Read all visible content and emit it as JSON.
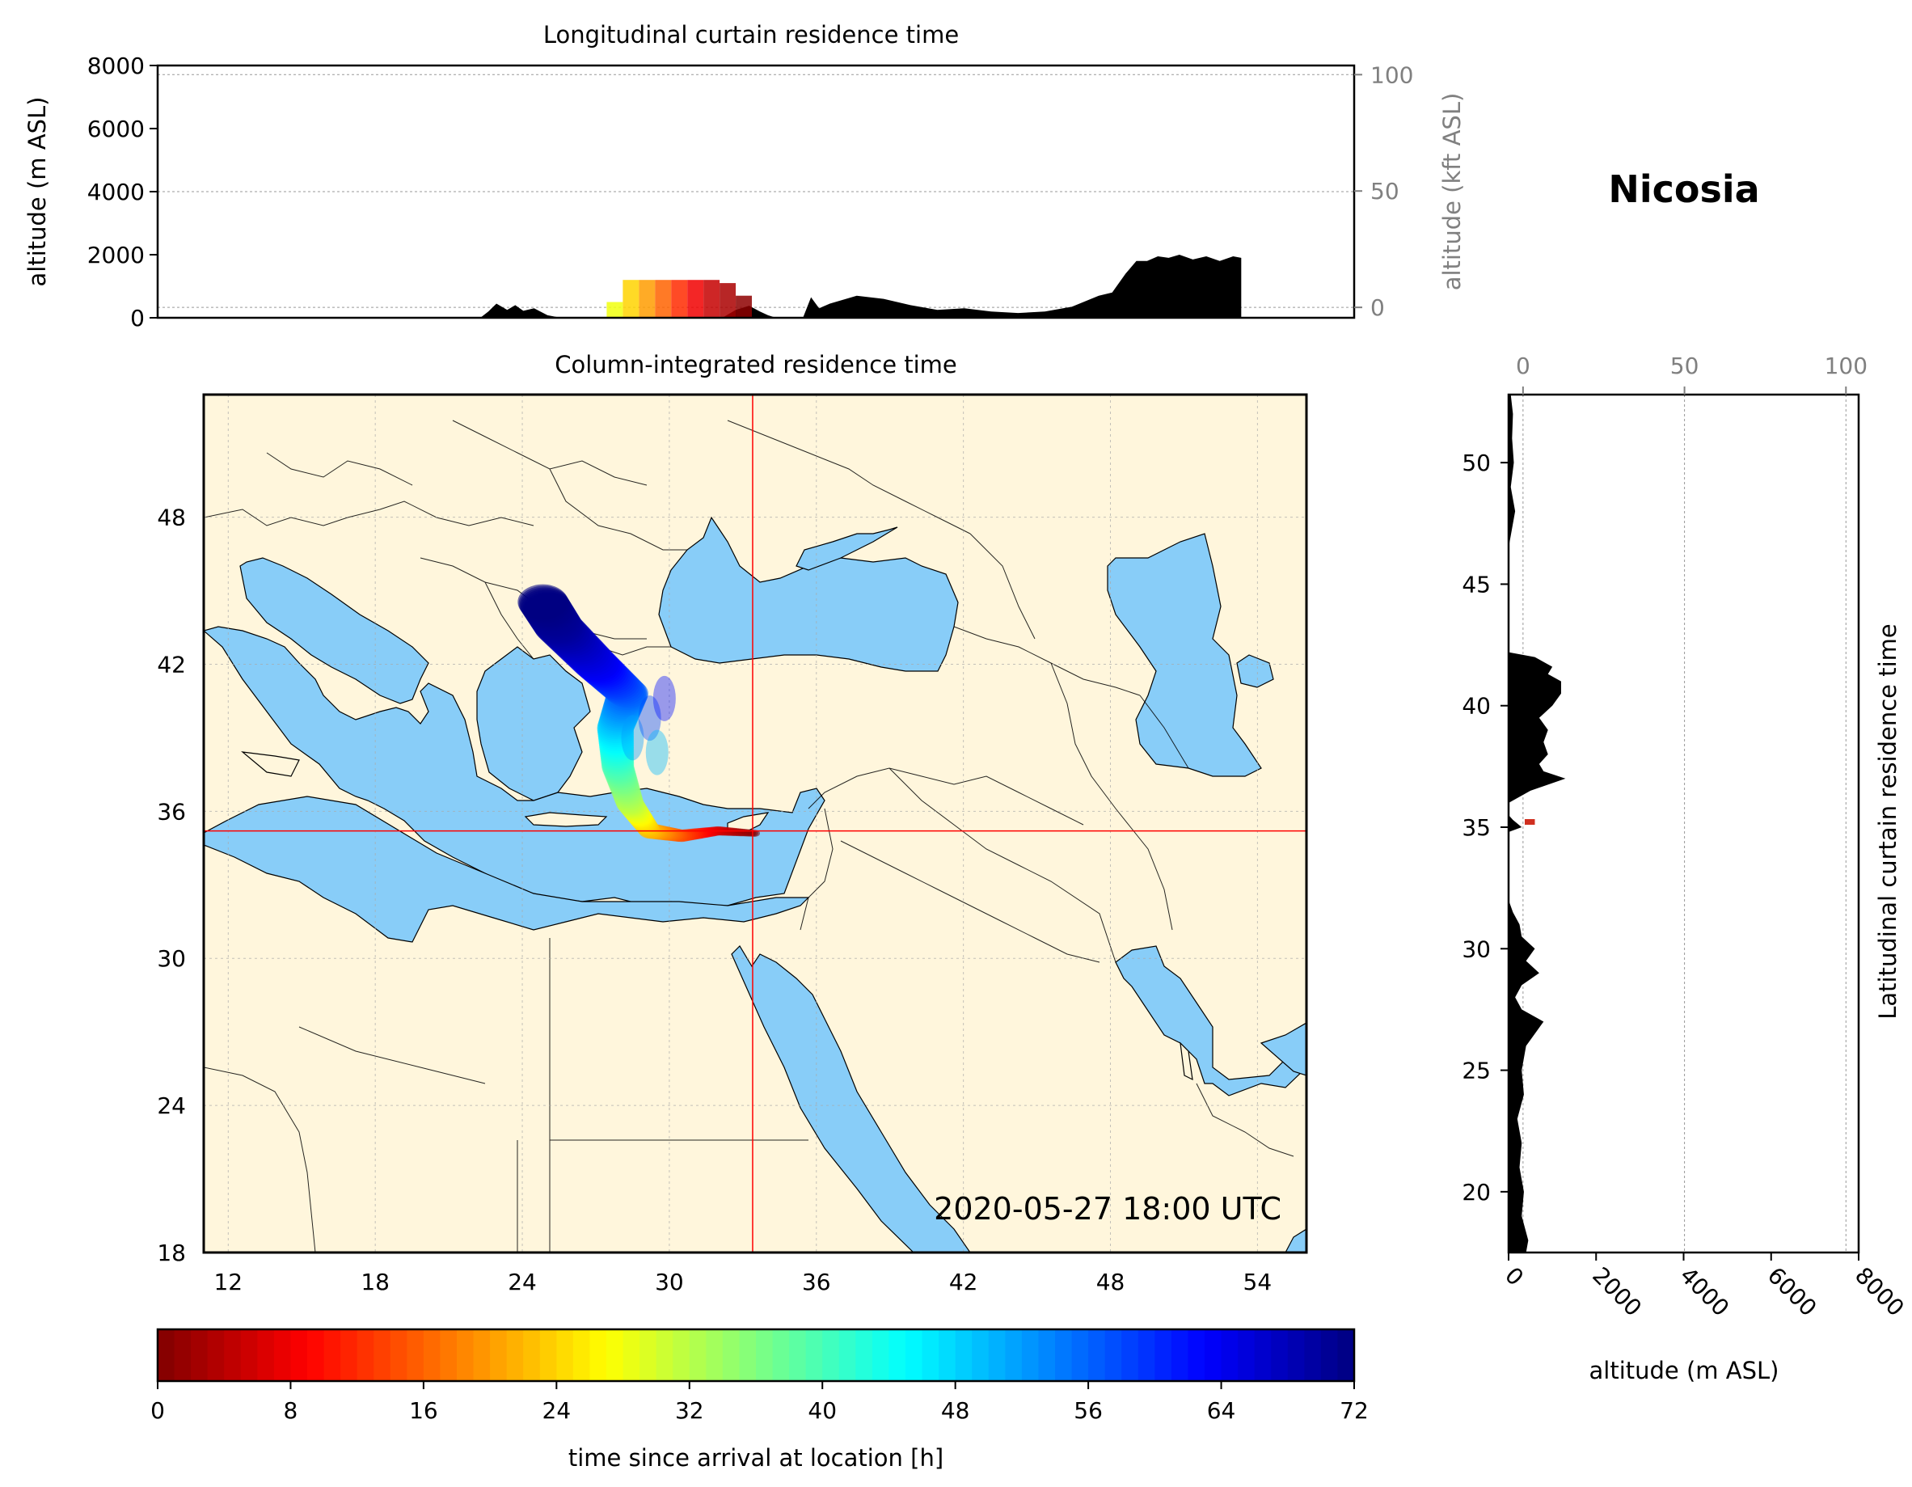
{
  "location_name": "Nicosia",
  "timestamp": "2020-05-27 18:00 UTC",
  "chart_data": [
    {
      "id": "longitudinal",
      "type": "area",
      "title": "Longitudinal curtain residence time",
      "ylabel": "altitude (m ASL)",
      "ylabel_right": "altitude (kft ASL)",
      "ylim": [
        0,
        8000
      ],
      "yticks": [
        "0",
        "2000",
        "4000",
        "6000",
        "8000"
      ],
      "yticks_right": [
        "0",
        "50",
        "100"
      ],
      "xlim": [
        11,
        55.5
      ],
      "grid": true,
      "terrain_lon": [
        23,
        23.3,
        23.6,
        24,
        24.3,
        24.6,
        25,
        25.5,
        26
      ],
      "terrain_alt": [
        0,
        200,
        450,
        250,
        400,
        220,
        300,
        80,
        0
      ],
      "terrain2_lon": [
        32,
        32.5,
        33,
        33.4,
        33.7,
        34
      ],
      "terrain2_alt": [
        0,
        250,
        380,
        200,
        80,
        0
      ],
      "terrain3_lon": [
        35,
        35.3,
        35.6,
        36,
        37,
        38,
        39,
        40,
        41,
        42,
        43,
        44,
        45,
        46,
        46.5,
        47,
        47.4,
        47.8,
        48.2,
        48.6,
        49,
        49.5,
        50,
        50.5,
        51,
        51.3,
        51.3
      ],
      "terrain3_alt": [
        0,
        650,
        300,
        450,
        700,
        600,
        400,
        250,
        300,
        200,
        150,
        200,
        350,
        700,
        800,
        1400,
        1800,
        1800,
        1950,
        1900,
        2000,
        1850,
        1950,
        1800,
        1950,
        1900,
        0
      ],
      "plume": [
        {
          "lon": 28.0,
          "alt_top": 500,
          "hours": 28
        },
        {
          "lon": 28.6,
          "alt_top": 1200,
          "hours": 24
        },
        {
          "lon": 29.2,
          "alt_top": 1200,
          "hours": 20
        },
        {
          "lon": 29.8,
          "alt_top": 1200,
          "hours": 16
        },
        {
          "lon": 30.4,
          "alt_top": 1200,
          "hours": 12
        },
        {
          "lon": 31.0,
          "alt_top": 1200,
          "hours": 8
        },
        {
          "lon": 31.6,
          "alt_top": 1200,
          "hours": 5
        },
        {
          "lon": 32.2,
          "alt_top": 1100,
          "hours": 3
        },
        {
          "lon": 32.8,
          "alt_top": 700,
          "hours": 1
        }
      ]
    },
    {
      "id": "column_map",
      "type": "heatmap",
      "title": "Column-integrated residence time",
      "xlim": [
        11,
        56
      ],
      "ylim": [
        18,
        53
      ],
      "xticks": [
        "12",
        "18",
        "24",
        "30",
        "36",
        "42",
        "48",
        "54"
      ],
      "yticks": [
        "18",
        "24",
        "30",
        "36",
        "42",
        "48"
      ],
      "release_point": {
        "lon": 33.4,
        "lat": 35.2
      },
      "grid": true,
      "plume_track": [
        {
          "lon": 33.5,
          "lat": 35.1,
          "hours": 0
        },
        {
          "lon": 32.0,
          "lat": 35.2,
          "hours": 6
        },
        {
          "lon": 30.5,
          "lat": 35.0,
          "hours": 14
        },
        {
          "lon": 29.2,
          "lat": 35.2,
          "hours": 22
        },
        {
          "lon": 28.4,
          "lat": 36.3,
          "hours": 32
        },
        {
          "lon": 27.9,
          "lat": 37.8,
          "hours": 40
        },
        {
          "lon": 27.8,
          "lat": 39.4,
          "hours": 48
        },
        {
          "lon": 28.3,
          "lat": 40.8,
          "hours": 56
        },
        {
          "lon": 27.0,
          "lat": 42.0,
          "hours": 64
        },
        {
          "lon": 25.5,
          "lat": 43.5,
          "hours": 70
        },
        {
          "lon": 24.8,
          "lat": 44.6,
          "hours": 72
        }
      ]
    },
    {
      "id": "latitudinal",
      "type": "area",
      "title": "Latitudinal curtain residence time",
      "xlabel": "altitude (m ASL)",
      "xlim": [
        0,
        8000
      ],
      "xticks": [
        "0",
        "2000",
        "4000",
        "6000",
        "8000"
      ],
      "xticks_top": [
        "0",
        "50",
        "100"
      ],
      "ylim": [
        17.5,
        52.8
      ],
      "yticks": [
        "20",
        "25",
        "30",
        "35",
        "40",
        "45",
        "50"
      ],
      "grid": true,
      "terrain_lat": [
        17.5,
        18,
        19,
        20,
        21,
        22,
        23,
        24,
        25,
        26,
        26.5,
        27,
        27.5,
        28,
        28.5,
        29,
        29.5,
        30,
        30.5,
        31,
        31.5,
        32
      ],
      "terrain_alt": [
        400,
        450,
        300,
        350,
        250,
        300,
        200,
        350,
        300,
        400,
        600,
        800,
        300,
        150,
        300,
        700,
        400,
        600,
        300,
        250,
        100,
        0
      ],
      "terrain2_lat": [
        34.8,
        35.0,
        35.3,
        35.5
      ],
      "terrain2_alt": [
        0,
        300,
        100,
        0
      ],
      "terrain3_lat": [
        36.0,
        36.5,
        37,
        37.3,
        37.6,
        38,
        38.5,
        39,
        39.5,
        40,
        40.5,
        41,
        41.3,
        41.6,
        42,
        42.2
      ],
      "terrain3_alt": [
        0,
        500,
        1300,
        800,
        700,
        900,
        800,
        900,
        700,
        1000,
        1200,
        1200,
        900,
        1000,
        600,
        0
      ],
      "terrain4_lat": [
        46.5,
        47,
        48,
        49,
        50,
        51,
        52,
        52.8
      ],
      "terrain4_alt": [
        0,
        50,
        150,
        50,
        120,
        80,
        100,
        50
      ],
      "plume_lat": 35.2,
      "plume_alt_top": 600
    },
    {
      "id": "colorbar",
      "type": "colorbar",
      "label": "time since arrival at location [h]",
      "range": [
        0,
        72
      ],
      "ticks": [
        "0",
        "8",
        "16",
        "24",
        "32",
        "40",
        "48",
        "56",
        "64",
        "72"
      ]
    }
  ],
  "colors": {
    "land": "#fff6dc",
    "sea": "#88cdf8",
    "terrain": "#000000",
    "release_marker": "#ff0000"
  }
}
